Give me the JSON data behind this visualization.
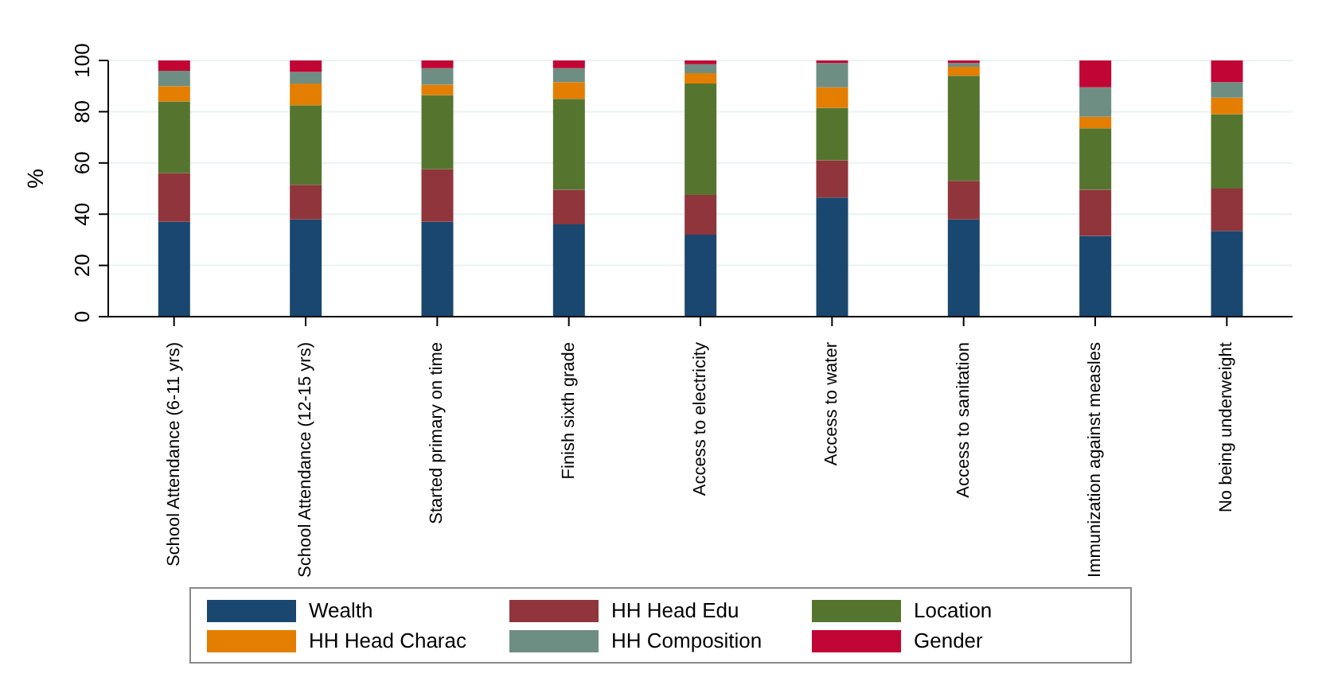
{
  "chart_data": {
    "type": "bar",
    "stacked": true,
    "ylabel": "%",
    "ylim": [
      0,
      100
    ],
    "yticks": [
      0,
      20,
      40,
      60,
      80,
      100
    ],
    "grid": "y",
    "legend": "bottom",
    "categories": [
      "School Attendance (6-11 yrs)",
      "School Attendance (12-15 yrs)",
      "Started primary on time",
      "Finish sixth grade",
      "Access to electricity",
      "Access to water",
      "Access to sanitation",
      "Immunization against measles",
      "No being underweight"
    ],
    "series": [
      {
        "name": "Wealth",
        "color": "#1a476f",
        "values": [
          37,
          38,
          37,
          36,
          32,
          46.5,
          38,
          31.5,
          33.5
        ]
      },
      {
        "name": "HH Head Edu",
        "color": "#90353b",
        "values": [
          19,
          13.5,
          20.5,
          13.5,
          15.5,
          14.5,
          15,
          18,
          16.5
        ]
      },
      {
        "name": "Location",
        "color": "#55752f",
        "values": [
          28,
          31,
          29,
          35.5,
          43.5,
          20.5,
          41,
          24,
          29
        ]
      },
      {
        "name": "HH Head Charac",
        "color": "#e37e00",
        "values": [
          6,
          8.5,
          4,
          6.5,
          4,
          8,
          3.5,
          4.5,
          6.5
        ]
      },
      {
        "name": "HH Composition",
        "color": "#6e8e84",
        "values": [
          6,
          4.5,
          6.5,
          5.5,
          3.5,
          9.5,
          1.5,
          11.5,
          6
        ]
      },
      {
        "name": "Gender",
        "color": "#c10534",
        "values": [
          4,
          4.5,
          3,
          3,
          1.5,
          1,
          1,
          10.5,
          8.5
        ]
      }
    ]
  }
}
